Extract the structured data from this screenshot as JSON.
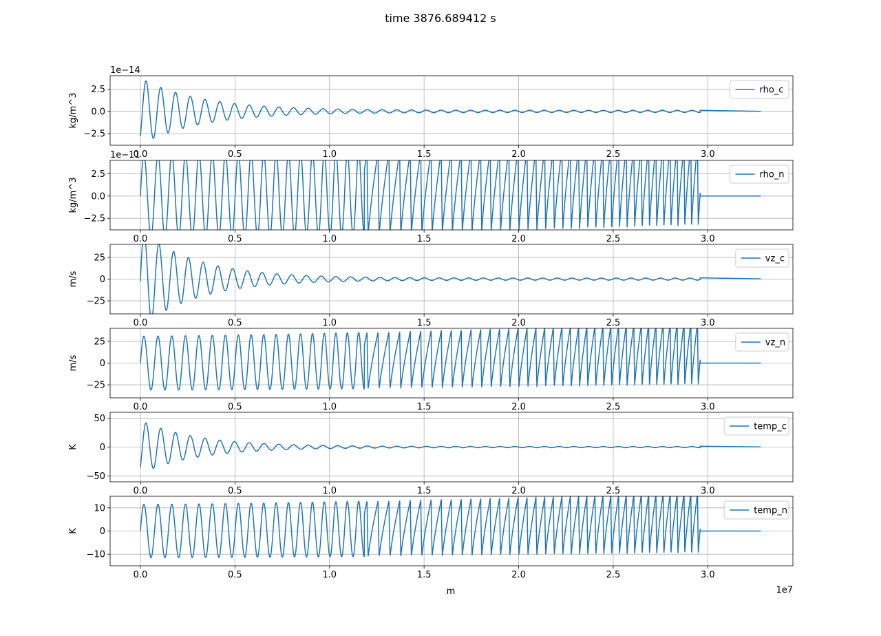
{
  "figure": {
    "title": "time 3876.689412 s",
    "xlabel": "m",
    "x_offset_text": "1e7"
  },
  "chart_data": [
    {
      "type": "line",
      "series": [
        {
          "name": "rho_c",
          "color": "#1f77b4"
        }
      ],
      "ylabel": "kg/m^3",
      "y_offset_text": "1e−14",
      "xlim": [
        -0.16,
        3.45
      ],
      "ylim": [
        -3.8,
        4.0
      ],
      "xticks": [
        0.0,
        0.5,
        1.0,
        1.5,
        2.0,
        2.5,
        3.0
      ],
      "xtick_labels": [
        "0.0",
        "0.5",
        "1.0",
        "1.5",
        "2.0",
        "2.5",
        "3.0"
      ],
      "yticks": [
        -2.5,
        0.0,
        2.5
      ],
      "ytick_labels": [
        "−2.5",
        "0.0",
        "2.5"
      ],
      "grid": true,
      "legend": "upper-right",
      "shape": {
        "kind": "decay",
        "period": 0.078,
        "amp": 3.6,
        "tau": 0.32,
        "floor": 0.12,
        "peak_at": 0.03
      },
      "tail": {
        "x_start": 2.96,
        "x_end": 3.28,
        "y_start": 0.12,
        "y_end": 0.0
      }
    },
    {
      "type": "line",
      "series": [
        {
          "name": "rho_n",
          "color": "#1f77b4"
        }
      ],
      "ylabel": "kg/m^3",
      "y_offset_text": "1e−11",
      "xlim": [
        -0.16,
        3.45
      ],
      "ylim": [
        -3.8,
        4.0
      ],
      "xticks": [
        0.0,
        0.5,
        1.0,
        1.5,
        2.0,
        2.5,
        3.0
      ],
      "xtick_labels": [
        "0.0",
        "0.5",
        "1.0",
        "1.5",
        "2.0",
        "2.5",
        "3.0"
      ],
      "yticks": [
        -2.5,
        0.0,
        2.5
      ],
      "ytick_labels": [
        "−2.5",
        "0.0",
        "2.5"
      ],
      "grid": true,
      "legend": "upper-right",
      "shape": {
        "kind": "growing",
        "period_start": 0.075,
        "period_end": 0.035,
        "amp_start": 4.6,
        "amp_end": 6.0,
        "low_end": -3.3
      },
      "tail": {
        "x_start": 2.96,
        "x_end": 3.28,
        "y_start": 0.0,
        "y_end": 0.0
      }
    },
    {
      "type": "line",
      "series": [
        {
          "name": "vz_c",
          "color": "#1f77b4"
        }
      ],
      "ylabel": "m/s",
      "xlim": [
        -0.16,
        3.45
      ],
      "ylim": [
        -40,
        40
      ],
      "xticks": [
        0.0,
        0.5,
        1.0,
        1.5,
        2.0,
        2.5,
        3.0
      ],
      "xtick_labels": [
        "0.0",
        "0.5",
        "1.0",
        "1.5",
        "2.0",
        "2.5",
        "3.0"
      ],
      "yticks": [
        -25,
        0,
        25
      ],
      "ytick_labels": [
        "−25",
        "0",
        "25"
      ],
      "grid": true,
      "legend": "upper-right",
      "shape": {
        "kind": "decay",
        "period": 0.078,
        "amp": 55,
        "tau": 0.3,
        "floor": 1.2,
        "peak_at": 0.02
      },
      "tail": {
        "x_start": 2.96,
        "x_end": 3.28,
        "y_start": 1.5,
        "y_end": 0.3
      }
    },
    {
      "type": "line",
      "series": [
        {
          "name": "vz_n",
          "color": "#1f77b4"
        }
      ],
      "ylabel": "m/s",
      "xlim": [
        -0.16,
        3.45
      ],
      "ylim": [
        -40,
        40
      ],
      "xticks": [
        0.0,
        0.5,
        1.0,
        1.5,
        2.0,
        2.5,
        3.0
      ],
      "xtick_labels": [
        "0.0",
        "0.5",
        "1.0",
        "1.5",
        "2.0",
        "2.5",
        "3.0"
      ],
      "yticks": [
        -25,
        0,
        25
      ],
      "ytick_labels": [
        "−25",
        "0",
        "25"
      ],
      "grid": true,
      "legend": "upper-right",
      "shape": {
        "kind": "growing",
        "period_start": 0.075,
        "period_end": 0.035,
        "amp_start": 31,
        "amp_end": 48,
        "low_end": -25
      },
      "tail": {
        "x_start": 2.96,
        "x_end": 3.28,
        "y_start": 0,
        "y_end": 0
      }
    },
    {
      "type": "line",
      "series": [
        {
          "name": "temp_c",
          "color": "#1f77b4"
        }
      ],
      "ylabel": "K",
      "xlim": [
        -0.16,
        3.45
      ],
      "ylim": [
        -60,
        60
      ],
      "xticks": [
        0.0,
        0.5,
        1.0,
        1.5,
        2.0,
        2.5,
        3.0
      ],
      "xtick_labels": [
        "0.0",
        "0.5",
        "1.0",
        "1.5",
        "2.0",
        "2.5",
        "3.0"
      ],
      "yticks": [
        -50,
        0,
        50
      ],
      "ytick_labels": [
        "−50",
        "0",
        "50"
      ],
      "grid": true,
      "legend": "upper-right",
      "shape": {
        "kind": "decay",
        "period": 0.078,
        "amp": 45,
        "tau": 0.3,
        "floor": 1.0,
        "peak_at": 0.03
      },
      "tail": {
        "x_start": 2.96,
        "x_end": 3.28,
        "y_start": 1.5,
        "y_end": 0.3
      }
    },
    {
      "type": "line",
      "series": [
        {
          "name": "temp_n",
          "color": "#1f77b4"
        }
      ],
      "ylabel": "K",
      "xlim": [
        -0.16,
        3.45
      ],
      "ylim": [
        -15,
        15
      ],
      "xticks": [
        0.0,
        0.5,
        1.0,
        1.5,
        2.0,
        2.5,
        3.0
      ],
      "xtick_labels": [
        "0.0",
        "0.5",
        "1.0",
        "1.5",
        "2.0",
        "2.5",
        "3.0"
      ],
      "yticks": [
        -10,
        0,
        10
      ],
      "ytick_labels": [
        "−10",
        "0",
        "10"
      ],
      "grid": true,
      "legend": "upper-right",
      "shape": {
        "kind": "growing",
        "period_start": 0.075,
        "period_end": 0.035,
        "amp_start": 11.5,
        "amp_end": 17,
        "low_end": -9.5
      },
      "tail": {
        "x_start": 2.96,
        "x_end": 3.28,
        "y_start": 0,
        "y_end": 0
      }
    }
  ]
}
